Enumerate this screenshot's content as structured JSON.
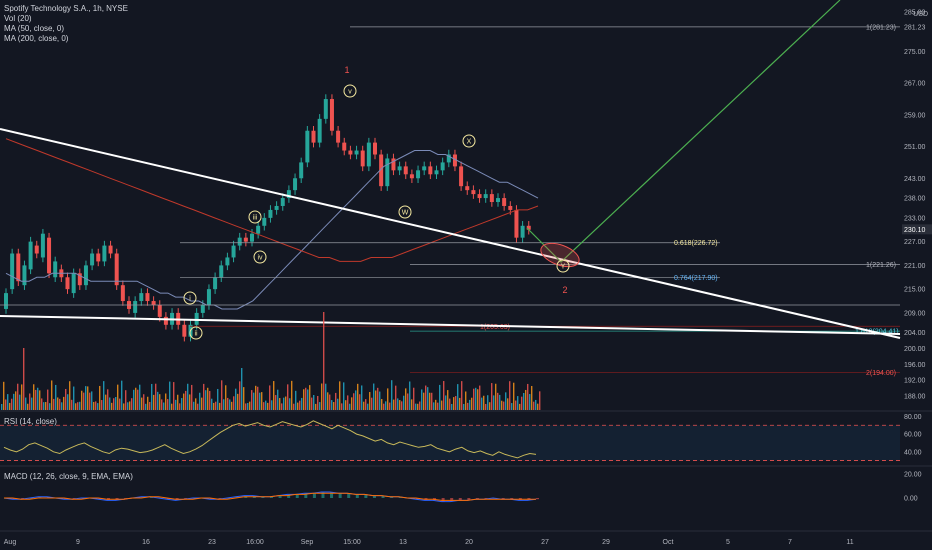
{
  "legend": {
    "title": "Spotify Technology S.A., 1h, NYSE",
    "vol": "Vol (20)",
    "ma50": "MA (50, close, 0)",
    "ma200": "MA (200, close, 0)"
  },
  "rsi_label": "RSI (14, close)",
  "macd_label": "MACD (12, 26, close, 9, EMA, EMA)",
  "currency": "USD",
  "price_ticks": [
    "285.00",
    "281.23",
    "275.00",
    "267.00",
    "259.00",
    "251.00",
    "243.00",
    "238.00",
    "233.00",
    "227.00",
    "221.00",
    "215.00",
    "209.00",
    "204.00",
    "200.00",
    "196.00",
    "192.00",
    "188.00"
  ],
  "last_price": "230.10",
  "rsi_ticks": [
    "80.00",
    "60.00",
    "40.00"
  ],
  "macd_ticks": [
    "20.00",
    "0.00"
  ],
  "x_ticks": [
    "Aug",
    "9",
    "16",
    "23",
    "16:00",
    "Sep",
    "15:00",
    "13",
    "20",
    "27",
    "29",
    "Oct",
    "5",
    "7",
    "11"
  ],
  "fib_labels": {
    "f1": "1(281.23)",
    "f0618": "0.618(226.72)",
    "f1_221": "1(221.26)",
    "f0764": "0.764(217.90)",
    "f1618": "1.618(204.41)",
    "f1_205": "1(205.63)",
    "f2": "2(194.00)"
  },
  "wave_labels": {
    "w1": "1",
    "w2": "2",
    "v": "v",
    "iii": "iii",
    "iv": "iv",
    "i": "i",
    "ii": "ii",
    "W": "W",
    "X": "X",
    "Y": "Y"
  },
  "colors": {
    "background": "#131722",
    "up": "#26a69a",
    "down": "#ef5350",
    "ma50": "#7b8bb8",
    "ma200": "#c0392b",
    "target_line": "#4caf50",
    "trendline": "#ffffff",
    "wave_label": "#f5e9a0",
    "red_label": "#ef5350",
    "rsi_line": "#c8b95a",
    "vol_blue": "#22a7c7",
    "vol_orange": "#f7931a"
  },
  "chart_data": {
    "type": "candlestick",
    "title": "Spotify Technology S.A., 1h, NYSE",
    "ylim": [
      186,
      287
    ],
    "candles": [
      [
        210,
        214
      ],
      [
        215,
        224
      ],
      [
        224,
        217
      ],
      [
        216,
        221
      ],
      [
        220,
        227
      ],
      [
        226,
        224
      ],
      [
        223,
        229
      ],
      [
        228,
        219
      ],
      [
        218,
        222
      ],
      [
        220,
        218
      ],
      [
        218,
        215
      ],
      [
        214,
        219
      ],
      [
        219,
        216
      ],
      [
        216,
        221
      ],
      [
        221,
        224
      ],
      [
        224,
        222
      ],
      [
        222,
        226
      ],
      [
        226,
        224
      ],
      [
        224,
        216
      ],
      [
        216,
        212
      ],
      [
        212,
        210
      ],
      [
        209,
        212
      ],
      [
        212,
        214
      ],
      [
        214,
        212
      ],
      [
        212,
        211
      ],
      [
        211,
        208
      ],
      [
        208,
        206
      ],
      [
        206,
        209
      ],
      [
        209,
        206
      ],
      [
        206,
        203
      ],
      [
        203,
        206
      ],
      [
        206,
        209
      ],
      [
        209,
        211
      ],
      [
        211,
        215
      ],
      [
        215,
        218
      ],
      [
        218,
        221
      ],
      [
        221,
        223
      ],
      [
        223,
        226
      ],
      [
        226,
        228
      ],
      [
        228,
        227
      ],
      [
        227,
        229
      ],
      [
        229,
        231
      ],
      [
        231,
        233
      ],
      [
        233,
        235
      ],
      [
        235,
        236
      ],
      [
        236,
        238
      ],
      [
        238,
        240
      ],
      [
        240,
        243
      ],
      [
        243,
        247
      ],
      [
        247,
        255
      ],
      [
        255,
        252
      ],
      [
        252,
        258
      ],
      [
        258,
        263
      ],
      [
        263,
        255
      ],
      [
        255,
        252
      ],
      [
        252,
        250
      ],
      [
        250,
        249
      ],
      [
        249,
        250
      ],
      [
        250,
        246
      ],
      [
        246,
        252
      ],
      [
        252,
        249
      ],
      [
        249,
        241
      ],
      [
        241,
        248
      ],
      [
        248,
        245
      ],
      [
        245,
        246
      ],
      [
        246,
        244
      ],
      [
        244,
        243
      ],
      [
        243,
        245
      ],
      [
        245,
        246
      ],
      [
        246,
        244
      ],
      [
        244,
        245
      ],
      [
        245,
        247
      ],
      [
        247,
        249
      ],
      [
        249,
        246
      ],
      [
        246,
        241
      ],
      [
        241,
        240
      ],
      [
        240,
        239
      ],
      [
        239,
        238
      ],
      [
        238,
        239
      ],
      [
        239,
        237
      ],
      [
        237,
        238
      ],
      [
        238,
        236
      ],
      [
        236,
        235
      ],
      [
        235,
        228
      ],
      [
        228,
        231
      ],
      [
        231,
        230
      ]
    ],
    "ma50": [
      219,
      218,
      217,
      217,
      218,
      218,
      219,
      219,
      219,
      219,
      218,
      217,
      217,
      217,
      217,
      217,
      217,
      217,
      216,
      215,
      214,
      214,
      213,
      213,
      212,
      212,
      211,
      211,
      210,
      210,
      210,
      211,
      212,
      214,
      216,
      218,
      220,
      222,
      224,
      226,
      228,
      230,
      232,
      234,
      236,
      238,
      240,
      242,
      244,
      246,
      247,
      248,
      249,
      250,
      250,
      250,
      249,
      249,
      248,
      247,
      246,
      245,
      244,
      243,
      242,
      242,
      241,
      240,
      239,
      238
    ],
    "ma200": [
      253,
      252,
      251,
      250,
      249,
      248,
      247,
      246,
      245,
      244,
      243,
      242,
      241,
      240,
      239,
      238,
      237,
      236,
      235,
      234,
      233,
      232,
      231,
      230,
      229,
      228,
      227,
      226,
      225,
      224,
      223,
      223,
      222,
      222,
      222,
      223,
      223,
      223,
      224,
      225,
      226,
      227,
      228,
      229,
      230,
      231,
      232,
      233,
      234,
      235,
      235,
      236
    ],
    "fib_levels": [
      {
        "label": "1(281.23)",
        "value": 281.23
      },
      {
        "label": "0.618(226.72)",
        "value": 226.72
      },
      {
        "label": "1(221.26)",
        "value": 221.26
      },
      {
        "label": "0.764(217.90)",
        "value": 217.9
      },
      {
        "label": "1.618(204.41)",
        "value": 204.41
      },
      {
        "label": "1(205.63)",
        "value": 205.63
      },
      {
        "label": "2(194.00)",
        "value": 194.0
      }
    ],
    "rsi": {
      "ylim": [
        25,
        85
      ],
      "levels": [
        70,
        30
      ],
      "values": [
        45,
        42,
        40,
        43,
        48,
        50,
        47,
        44,
        40,
        38,
        42,
        45,
        48,
        50,
        46,
        43,
        40,
        38,
        42,
        44,
        43,
        41,
        39,
        40,
        42,
        45,
        48,
        44,
        41,
        38,
        40,
        43,
        47,
        52,
        57,
        62,
        66,
        70,
        72,
        69,
        71,
        73,
        70,
        68,
        71,
        74,
        72,
        70,
        68,
        71,
        75,
        72,
        69,
        66,
        70,
        67,
        64,
        60,
        58,
        55,
        52,
        54,
        50,
        48,
        51,
        49,
        47,
        45,
        46,
        48,
        44,
        42,
        40,
        43,
        45,
        41,
        39,
        41,
        38,
        36,
        40,
        37,
        35,
        33,
        36,
        38,
        37
      ]
    },
    "macd": {
      "ylim": [
        -25,
        25
      ],
      "macd": [
        0,
        -1,
        -1,
        0,
        1,
        1,
        0,
        -1,
        -1,
        0,
        0,
        -1,
        -2,
        -2,
        -1,
        0,
        1,
        1,
        0,
        -1,
        -2,
        -1,
        0,
        0,
        -1,
        -1,
        0,
        1,
        2,
        2,
        1,
        1,
        2,
        3,
        3,
        4,
        4,
        5,
        5,
        4,
        4,
        3,
        3,
        2,
        2,
        1,
        1,
        0,
        -1,
        -2,
        -2,
        -3,
        -3,
        -2,
        -2,
        -1,
        -1,
        0,
        -1,
        -1,
        -2,
        -2,
        -1
      ],
      "signal": [
        0,
        0,
        -1,
        -1,
        0,
        0,
        0,
        0,
        -1,
        -1,
        0,
        0,
        -1,
        -1,
        -1,
        0,
        0,
        1,
        1,
        0,
        -1,
        -1,
        -1,
        0,
        0,
        -1,
        -1,
        0,
        1,
        1,
        1,
        1,
        2,
        2,
        3,
        3,
        4,
        4,
        4,
        4,
        4,
        3,
        3,
        2,
        2,
        1,
        1,
        0,
        0,
        -1,
        -1,
        -2,
        -2,
        -2,
        -2,
        -1,
        -1,
        -1,
        -1,
        -1,
        -1,
        -1,
        -1
      ]
    }
  }
}
